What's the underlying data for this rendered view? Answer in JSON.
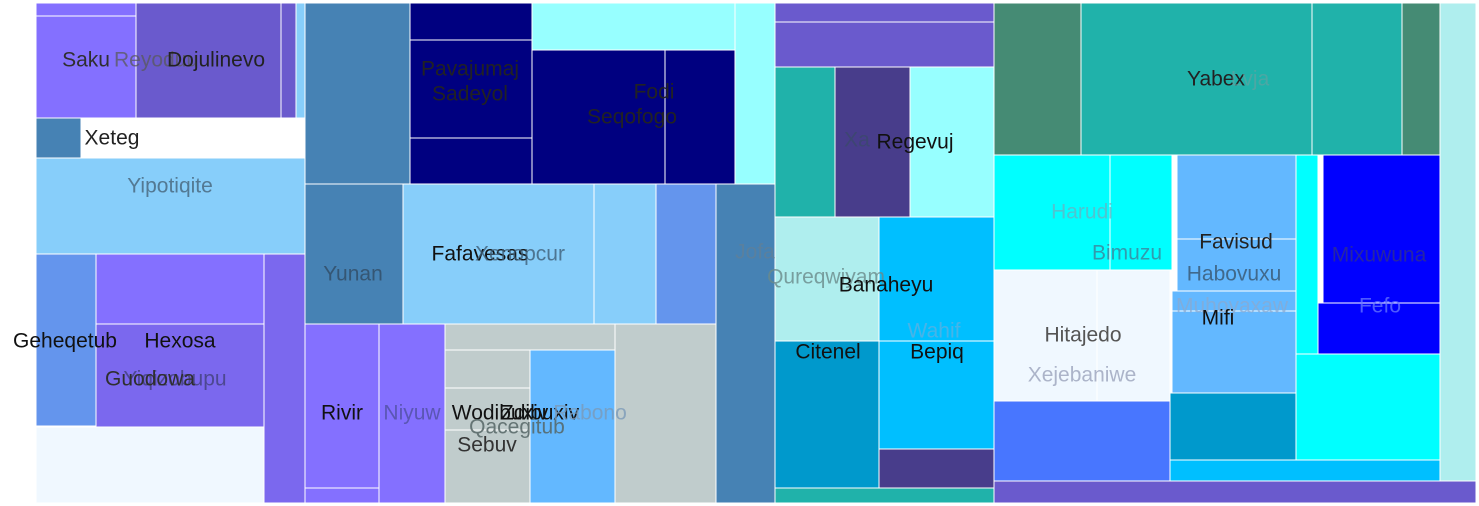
{
  "chart_data": {
    "type": "treemap",
    "title": "",
    "legend": "none",
    "cells": [
      {
        "label": "Saku",
        "value": 25,
        "color": "#8470FF",
        "label_color": "#2f2f2f",
        "label_opacity": 1
      },
      {
        "label": "Reyoduu",
        "value": 4,
        "color": "#8470FF",
        "label_color": "#5a5a5a",
        "label_opacity": 0.75
      },
      {
        "label": "Dojulinevo",
        "value": 31,
        "color": "#6A5ACD",
        "label_color": "#222222",
        "label_opacity": 1
      },
      {
        "label": "",
        "value": 2,
        "color": "#6A5ACD",
        "label_color": "#222222",
        "label_opacity": 1
      },
      {
        "label": "",
        "value": 1,
        "color": "#87CEFA",
        "label_color": "#222222",
        "label_opacity": 1
      },
      {
        "label": "Xeteg",
        "value": 17,
        "color": "#4682B4",
        "label_color": "#222222",
        "label_opacity": 1
      },
      {
        "label": "Yipotiqite",
        "value": 28,
        "color": "#87CEFA",
        "label_color": "#4a6a80",
        "label_opacity": 0.85
      },
      {
        "label": "Geheqetub",
        "value": 11,
        "color": "#6495ED",
        "label_color": "#111111",
        "label_opacity": 1
      },
      {
        "label": "Hexosa",
        "value": 19,
        "color": "#8470FF",
        "label_color": "#111111",
        "label_opacity": 1
      },
      {
        "label": "Yiqizobupu",
        "value": 12,
        "color": "#7B68EE",
        "label_color": "#3a3a6a",
        "label_opacity": 0.7
      },
      {
        "label": "Guodowa",
        "value": 9,
        "color": "#7B68EE",
        "label_color": "#2f2f2f",
        "label_opacity": 1
      },
      {
        "label": "",
        "value": 14,
        "color": "#F0F8FF",
        "label_color": "#222222",
        "label_opacity": 1
      },
      {
        "label": "Yunan",
        "value": 14,
        "color": "#4682B4",
        "label_color": "#334f68",
        "label_opacity": 0.85
      },
      {
        "label": "Pavajumaj",
        "value": 6,
        "color": "#000080",
        "label_color": "#222222",
        "label_opacity": 1
      },
      {
        "label": "Sadeyol",
        "value": 7,
        "color": "#000080",
        "label_color": "#222222",
        "label_opacity": 1
      },
      {
        "label": "Fodi",
        "value": 10,
        "color": "#000080",
        "label_color": "#222222",
        "label_opacity": 1
      },
      {
        "label": "Seqofogo",
        "value": 8,
        "color": "#000080",
        "label_color": "#222222",
        "label_opacity": 1
      },
      {
        "label": "Fafavesas",
        "value": 21,
        "color": "#87CEFA",
        "label_color": "#111111",
        "label_opacity": 1
      },
      {
        "label": "Xenopcur",
        "value": 8,
        "color": "#87CEFA",
        "label_color": "#3f5f78",
        "label_opacity": 0.8
      },
      {
        "label": "Jofa",
        "value": 17,
        "color": "#4682B4",
        "label_color": "#5f7f98",
        "label_opacity": 0.8
      },
      {
        "label": "Rivir",
        "value": 13,
        "color": "#8470FF",
        "label_color": "#111111",
        "label_opacity": 1
      },
      {
        "label": "Niyuw",
        "value": 9,
        "color": "#8470FF",
        "label_color": "#5050a0",
        "label_opacity": 0.8
      },
      {
        "label": "Wodibuxiv",
        "value": 4,
        "color": "#C0CCCC",
        "label_color": "#111111",
        "label_opacity": 1
      },
      {
        "label": "Zdibuxiv",
        "value": 3,
        "color": "#C0CCCC",
        "label_color": "#111111",
        "label_opacity": 1
      },
      {
        "label": "Qacegitub",
        "value": 5,
        "color": "#C0CCCC",
        "label_color": "#556565",
        "label_opacity": 0.85
      },
      {
        "label": "Sebuv",
        "value": 4,
        "color": "#C0CCCC",
        "label_color": "#333333",
        "label_opacity": 1
      },
      {
        "label": "Rabono",
        "value": 8,
        "color": "#63B8FF",
        "label_color": "#7a9ab8",
        "label_opacity": 0.8
      },
      {
        "label": "",
        "value": 12,
        "color": "#C0CCCC",
        "label_color": "#222222",
        "label_opacity": 1
      },
      {
        "label": "Xa",
        "value": 8,
        "color": "#20B2AA",
        "label_color": "#3a4a6a",
        "label_opacity": 0.75
      },
      {
        "label": "Regevuj",
        "value": 12,
        "color": "#483D8B",
        "label_color": "#111111",
        "label_opacity": 1
      },
      {
        "label": "Qureqwiyam",
        "value": 13,
        "color": "#AFEEEE",
        "label_color": "#6a8a8a",
        "label_opacity": 0.8
      },
      {
        "label": "Banaheyu",
        "value": 17,
        "color": "#00BFFF",
        "label_color": "#111111",
        "label_opacity": 1
      },
      {
        "label": "Wahif",
        "value": 6,
        "color": "#00BFFF",
        "label_color": "#5fb0e0",
        "label_opacity": 0.75
      },
      {
        "label": "Citenel",
        "value": 13,
        "color": "#0099CC",
        "label_color": "#111111",
        "label_opacity": 1
      },
      {
        "label": "Bepiq",
        "value": 14,
        "color": "#00BFFF",
        "label_color": "#111111",
        "label_opacity": 1
      },
      {
        "label": "Yabex",
        "value": 31,
        "color": "#20B2AA",
        "label_color": "#222222",
        "label_opacity": 1
      },
      {
        "label": "Lvja",
        "value": 10,
        "color": "#20B2AA",
        "label_color": "#6aa0a0",
        "label_opacity": 0.6
      },
      {
        "label": "Harudi",
        "value": 12,
        "color": "#00FFFF",
        "label_color": "#6ab0c0",
        "label_opacity": 0.75
      },
      {
        "label": "Bimuzu",
        "value": 7,
        "color": "#00FFFF",
        "label_color": "#3a8aa0",
        "label_opacity": 0.85
      },
      {
        "label": "Favisud",
        "value": 9,
        "color": "#63B8FF",
        "label_color": "#222222",
        "label_opacity": 1
      },
      {
        "label": "Habovuxu",
        "value": 7,
        "color": "#63B8FF",
        "label_color": "#3a5a78",
        "label_opacity": 0.85
      },
      {
        "label": "Muhoyaxaw",
        "value": 5,
        "color": "#63B8FF",
        "label_color": "#8aaad0",
        "label_opacity": 0.75
      },
      {
        "label": "Mifi",
        "value": 10,
        "color": "#63B8FF",
        "label_color": "#111111",
        "label_opacity": 1
      },
      {
        "label": "Mixuwuna",
        "value": 11,
        "color": "#0000FF",
        "label_color": "#2a2a9a",
        "label_opacity": 0.9
      },
      {
        "label": "Fefo",
        "value": 7,
        "color": "#0000FF",
        "label_color": "#6a7aff",
        "label_opacity": 0.75
      },
      {
        "label": "Hitajedo",
        "value": 13,
        "color": "#F0F8FF",
        "label_color": "#555555",
        "label_opacity": 1
      },
      {
        "label": "Xejebaniwe",
        "value": 7,
        "color": "#F0F8FF",
        "label_color": "#a0a8c0",
        "label_opacity": 0.85
      }
    ]
  }
}
